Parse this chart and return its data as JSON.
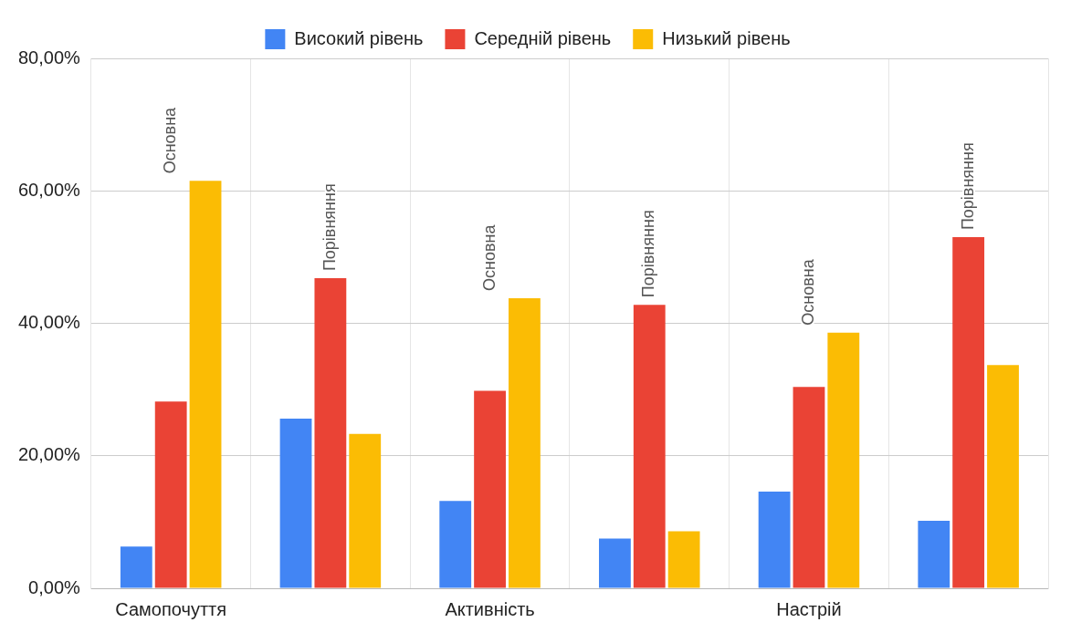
{
  "chart_data": {
    "type": "bar",
    "categories": [
      "Самопочуття",
      null,
      "Активність",
      null,
      "Настрій",
      null
    ],
    "series": [
      {
        "name": "Високий рівень",
        "color": "#4285f4",
        "values": [
          6.3,
          25.6,
          13.2,
          7.5,
          14.6,
          10.2
        ]
      },
      {
        "name": "Середній рівень",
        "color": "#ea4335",
        "values": [
          28.2,
          46.8,
          29.8,
          42.8,
          30.4,
          53.0
        ]
      },
      {
        "name": "Низький рівень",
        "color": "#fbbc04",
        "values": [
          61.5,
          23.3,
          43.8,
          8.6,
          38.6,
          33.7
        ]
      }
    ],
    "ylim": [
      0,
      80
    ],
    "yticks": [
      {
        "value": 0,
        "label": "0,00%"
      },
      {
        "value": 20,
        "label": "20,00%"
      },
      {
        "value": 40,
        "label": "40,00%"
      },
      {
        "value": 60,
        "label": "60,00%"
      },
      {
        "value": 80,
        "label": "80,00%"
      }
    ],
    "grid": true,
    "legend": "top",
    "annotations": [
      "Основна",
      "Порівняння",
      "Основна",
      "Порівняння",
      "Основна",
      "Порівняння"
    ]
  }
}
